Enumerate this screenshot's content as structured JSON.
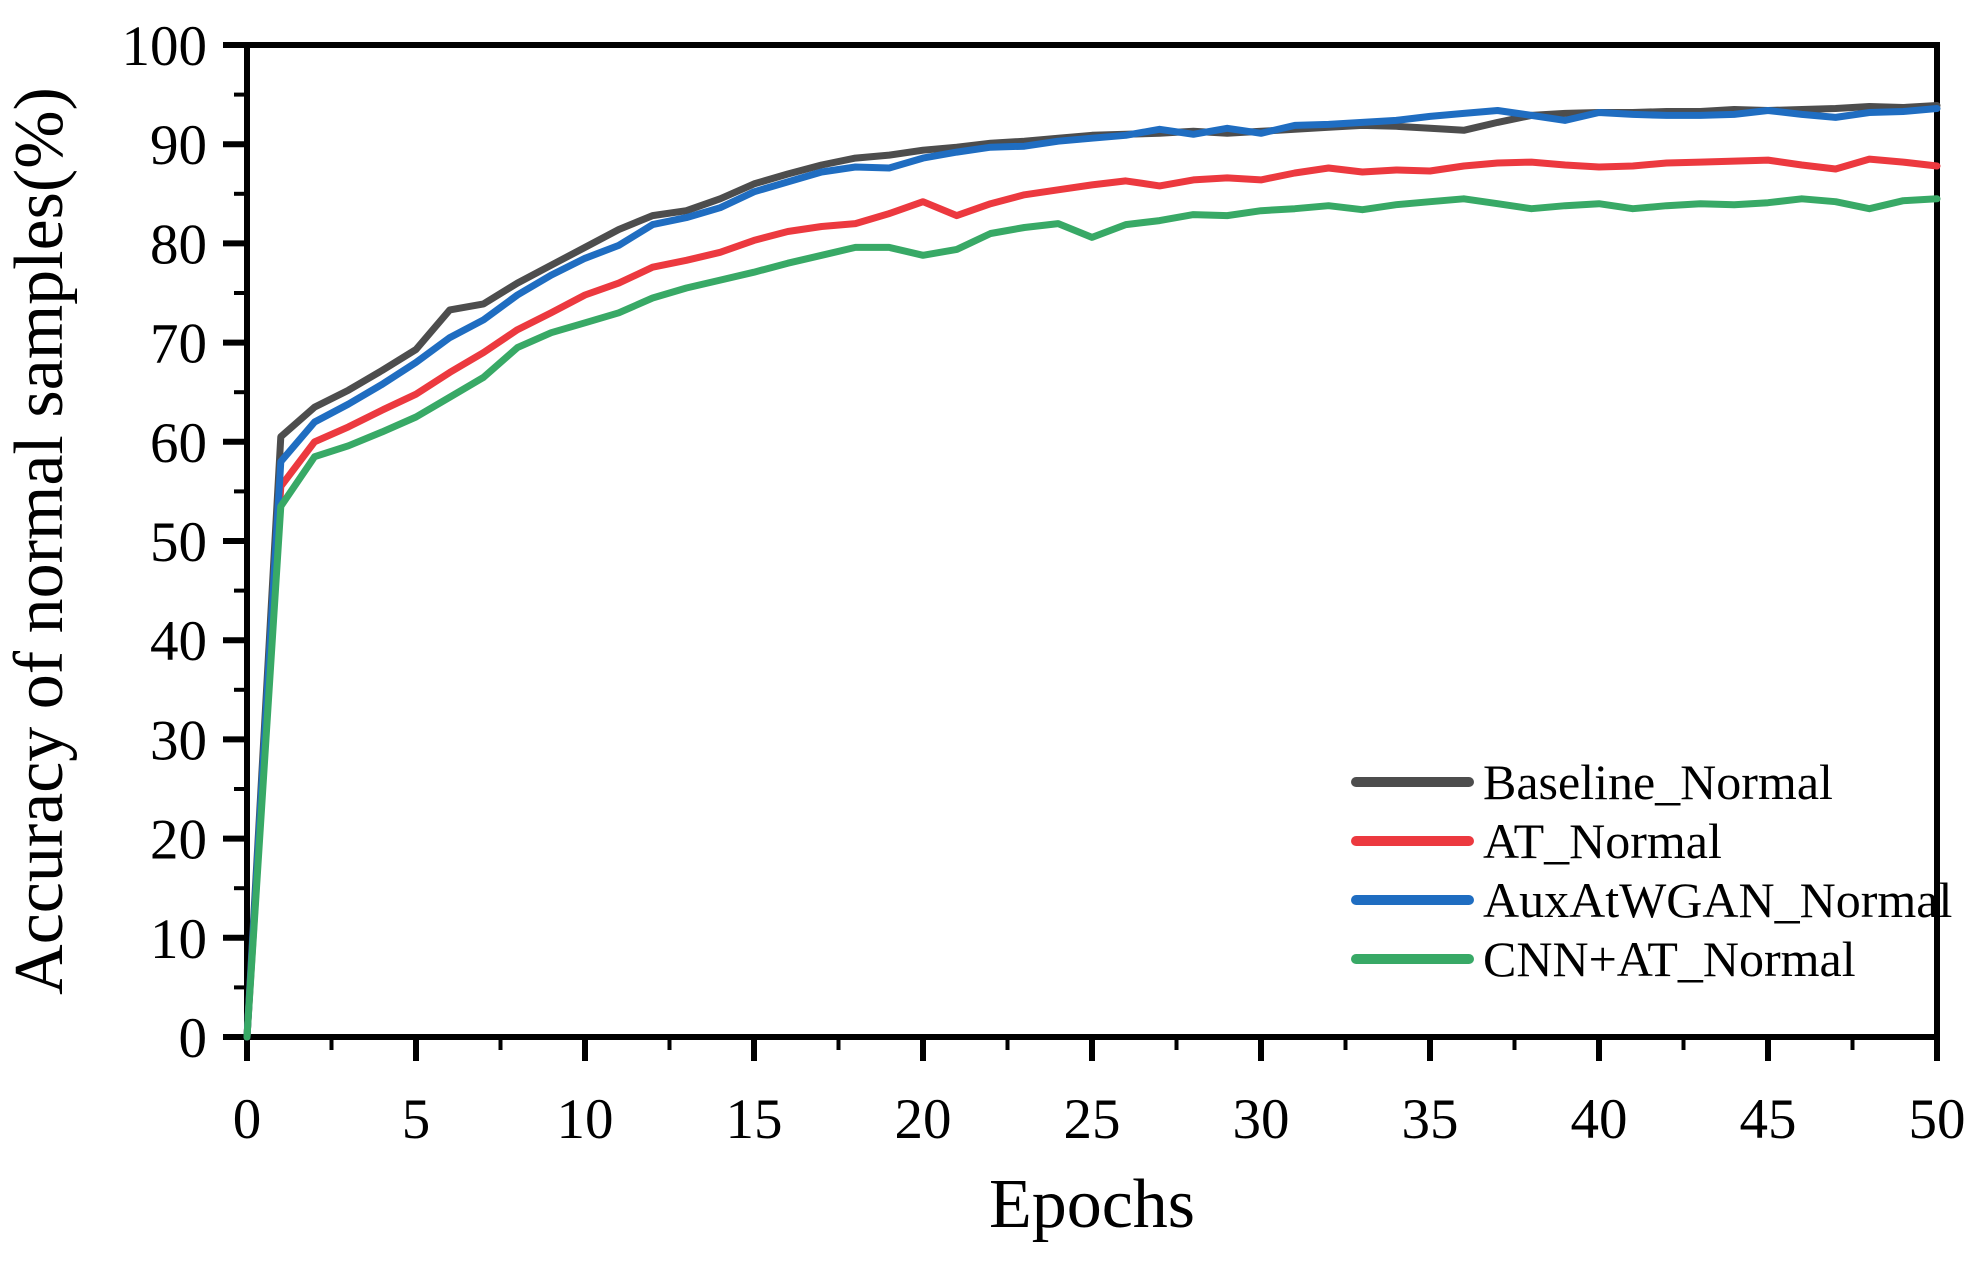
{
  "chart_data": {
    "type": "line",
    "title": "",
    "xlabel": "Epochs",
    "ylabel": "Accuracy of normal samples(%)",
    "xlim": [
      0,
      50
    ],
    "ylim": [
      0,
      100
    ],
    "x_major_ticks": [
      0,
      5,
      10,
      15,
      20,
      25,
      30,
      35,
      40,
      45,
      50
    ],
    "x_minor_tick_step": 2.5,
    "y_major_ticks": [
      0,
      10,
      20,
      30,
      40,
      50,
      60,
      70,
      80,
      90,
      100
    ],
    "y_minor_tick_step": 5,
    "grid": false,
    "legend_position": "lower right",
    "x": [
      0,
      1,
      2,
      3,
      4,
      5,
      6,
      7,
      8,
      9,
      10,
      11,
      12,
      13,
      14,
      15,
      16,
      17,
      18,
      19,
      20,
      21,
      22,
      23,
      24,
      25,
      26,
      27,
      28,
      29,
      30,
      31,
      32,
      33,
      34,
      35,
      36,
      37,
      38,
      39,
      40,
      41,
      42,
      43,
      44,
      45,
      46,
      47,
      48,
      49,
      50
    ],
    "series": [
      {
        "name": "Baseline_Normal",
        "color": "#4d4d4d",
        "values": [
          0,
          60.5,
          63.5,
          65.2,
          67.2,
          69.3,
          73.3,
          73.9,
          76.0,
          77.8,
          79.6,
          81.4,
          82.8,
          83.3,
          84.5,
          86.0,
          87.0,
          87.9,
          88.6,
          88.9,
          89.4,
          89.7,
          90.1,
          90.3,
          90.6,
          90.9,
          91.0,
          91.1,
          91.3,
          91.1,
          91.3,
          91.5,
          91.7,
          91.9,
          91.8,
          91.6,
          91.4,
          92.2,
          92.9,
          93.1,
          93.2,
          93.2,
          93.3,
          93.3,
          93.5,
          93.4,
          93.5,
          93.6,
          93.8,
          93.7,
          93.9
        ]
      },
      {
        "name": "AT_Normal",
        "color": "#ec393f",
        "values": [
          0,
          55.5,
          60.0,
          61.5,
          63.2,
          64.8,
          67.0,
          69.0,
          71.3,
          73.0,
          74.8,
          76.0,
          77.6,
          78.3,
          79.1,
          80.3,
          81.2,
          81.7,
          82.0,
          83.0,
          84.2,
          82.8,
          84.0,
          84.9,
          85.4,
          85.9,
          86.3,
          85.8,
          86.4,
          86.6,
          86.4,
          87.1,
          87.6,
          87.2,
          87.4,
          87.3,
          87.8,
          88.1,
          88.2,
          87.9,
          87.7,
          87.8,
          88.1,
          88.2,
          88.3,
          88.4,
          87.9,
          87.5,
          88.5,
          88.2,
          87.8
        ]
      },
      {
        "name": "AuxAtWGAN_Normal",
        "color": "#1f6dc1",
        "values": [
          0,
          58.0,
          62.0,
          63.8,
          65.8,
          68.0,
          70.5,
          72.3,
          74.8,
          76.8,
          78.5,
          79.8,
          81.9,
          82.6,
          83.6,
          85.2,
          86.2,
          87.2,
          87.7,
          87.6,
          88.6,
          89.2,
          89.7,
          89.8,
          90.3,
          90.6,
          90.9,
          91.5,
          91.0,
          91.6,
          91.1,
          91.9,
          92.0,
          92.2,
          92.4,
          92.8,
          93.1,
          93.4,
          92.9,
          92.4,
          93.2,
          93.0,
          92.9,
          92.9,
          93.0,
          93.4,
          93.0,
          92.7,
          93.2,
          93.3,
          93.6
        ]
      },
      {
        "name": "CNN+AT_Normal",
        "color": "#38a966",
        "values": [
          0,
          53.5,
          58.5,
          59.6,
          61.0,
          62.5,
          64.5,
          66.5,
          69.5,
          71.0,
          72.0,
          73.0,
          74.5,
          75.5,
          76.3,
          77.1,
          78.0,
          78.8,
          79.6,
          79.6,
          78.8,
          79.4,
          81.0,
          81.6,
          82.0,
          80.6,
          81.9,
          82.3,
          82.9,
          82.8,
          83.3,
          83.5,
          83.8,
          83.4,
          83.9,
          84.2,
          84.5,
          84.0,
          83.5,
          83.8,
          84.0,
          83.5,
          83.8,
          84.0,
          83.9,
          84.1,
          84.5,
          84.2,
          83.5,
          84.3,
          84.5
        ]
      }
    ]
  },
  "colors": {
    "axis": "#000000",
    "background": "#ffffff"
  }
}
